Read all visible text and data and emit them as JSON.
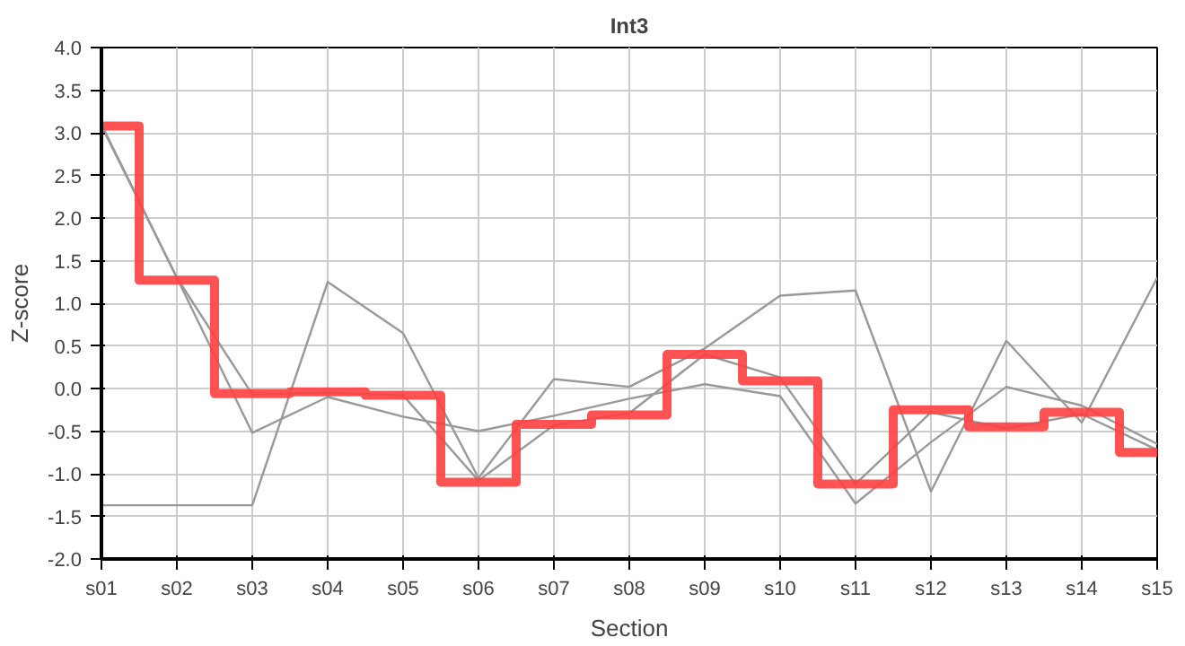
{
  "chart_data": {
    "type": "line",
    "title": "Int3",
    "xlabel": "Section",
    "ylabel": "Z-score",
    "categories": [
      "s01",
      "s02",
      "s03",
      "s04",
      "s05",
      "s06",
      "s07",
      "s08",
      "s09",
      "s10",
      "s11",
      "s12",
      "s13",
      "s14",
      "s15"
    ],
    "series": [
      {
        "color": "#999999",
        "values": [
          -1.37,
          -1.37,
          -1.37,
          1.25,
          0.65,
          -1.05,
          0.11,
          0.02,
          0.47,
          1.09,
          1.15,
          -1.21,
          0.56,
          -0.4,
          1.3
        ]
      },
      {
        "color": "#999999",
        "values": [
          3.1,
          1.3,
          -0.52,
          -0.1,
          -0.33,
          -0.5,
          -0.32,
          -0.12,
          0.05,
          -0.09,
          -1.35,
          -0.63,
          0.02,
          -0.2,
          -0.65
        ]
      },
      {
        "color": "#999999",
        "values": [
          3.08,
          1.3,
          -0.07,
          -0.05,
          -0.08,
          -1.08,
          -0.43,
          -0.29,
          0.4,
          0.13,
          -1.12,
          -0.28,
          -0.47,
          -0.3,
          -0.72
        ]
      },
      {
        "type": "step",
        "color": "#ff4040",
        "values": [
          3.08,
          1.27,
          -0.06,
          -0.04,
          -0.08,
          -1.1,
          -0.42,
          -0.31,
          0.4,
          0.09,
          -1.12,
          -0.25,
          -0.45,
          -0.28,
          -0.75
        ]
      }
    ],
    "ylim": [
      -2,
      4
    ],
    "yticks": [
      {
        "value": -2,
        "label": "-2.0"
      },
      {
        "value": -1.5,
        "label": "-1.5"
      },
      {
        "value": -1,
        "label": "-1.0"
      },
      {
        "value": -0.5,
        "label": "-0.5"
      },
      {
        "value": 0,
        "label": "0.0"
      },
      {
        "value": 0.5,
        "label": "0.5"
      },
      {
        "value": 1,
        "label": "1.0"
      },
      {
        "value": 1.5,
        "label": "1.5"
      },
      {
        "value": 2,
        "label": "2.0"
      },
      {
        "value": 2.5,
        "label": "2.5"
      },
      {
        "value": 3,
        "label": "3.0"
      },
      {
        "value": 3.5,
        "label": "3.5"
      },
      {
        "value": 4,
        "label": "4.0"
      }
    ],
    "grid": true,
    "marker": "none",
    "line_style": "solid"
  }
}
